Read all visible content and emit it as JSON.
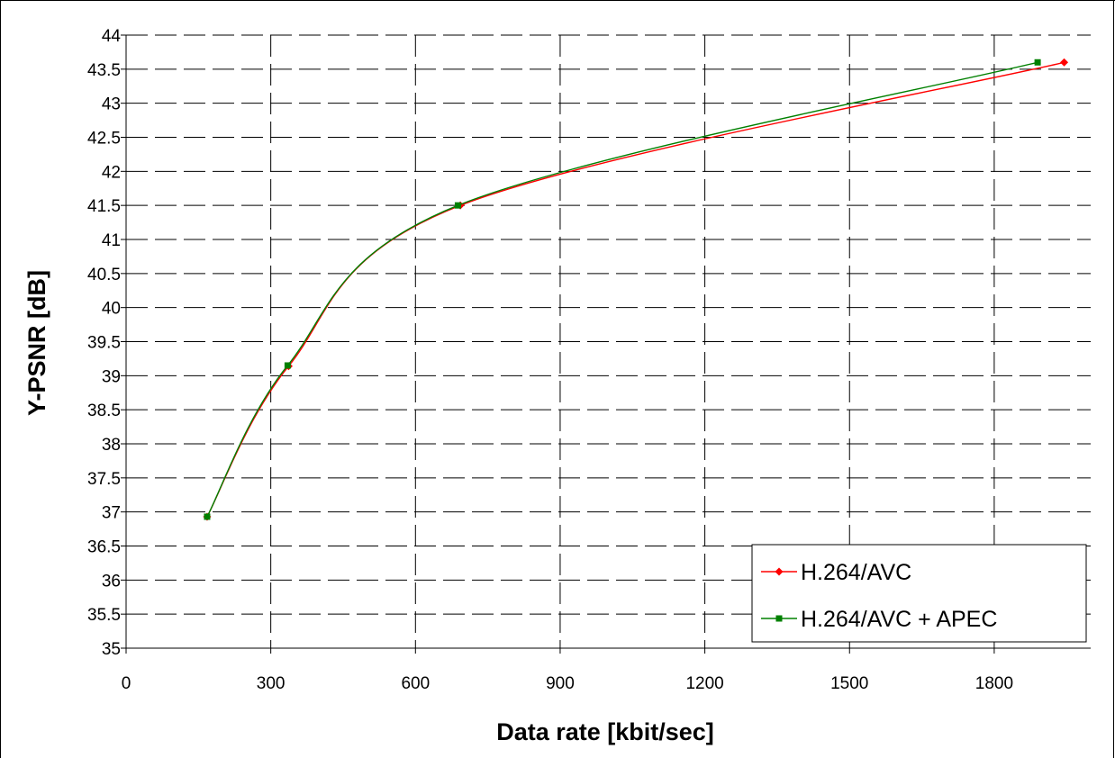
{
  "chart_data": {
    "type": "line",
    "title": "",
    "xlabel": "Data rate [kbit/sec]",
    "ylabel": "Y-PSNR [dB]",
    "xlim": [
      0,
      2000
    ],
    "ylim": [
      35,
      44
    ],
    "x_ticks": [
      "0",
      "300",
      "600",
      "900",
      "1200",
      "1500",
      "1800"
    ],
    "y_ticks": [
      "35",
      "35.5",
      "36",
      "36.5",
      "37",
      "37.5",
      "38",
      "38.5",
      "39",
      "39.5",
      "40",
      "40.5",
      "41",
      "41.5",
      "42",
      "42.5",
      "43",
      "43.5",
      "44"
    ],
    "grid": true,
    "legend_position": "bottom-right",
    "series": [
      {
        "name": "H.264/AVC",
        "color": "#ff0000",
        "marker": "diamond",
        "x": [
          168,
          337,
          693,
          1945
        ],
        "y": [
          36.93,
          39.14,
          41.5,
          43.6
        ]
      },
      {
        "name": "H.264/AVC + APEC",
        "color": "#008000",
        "marker": "square",
        "x": [
          168,
          335,
          688,
          1890
        ],
        "y": [
          36.93,
          39.15,
          41.5,
          43.6
        ]
      }
    ]
  }
}
